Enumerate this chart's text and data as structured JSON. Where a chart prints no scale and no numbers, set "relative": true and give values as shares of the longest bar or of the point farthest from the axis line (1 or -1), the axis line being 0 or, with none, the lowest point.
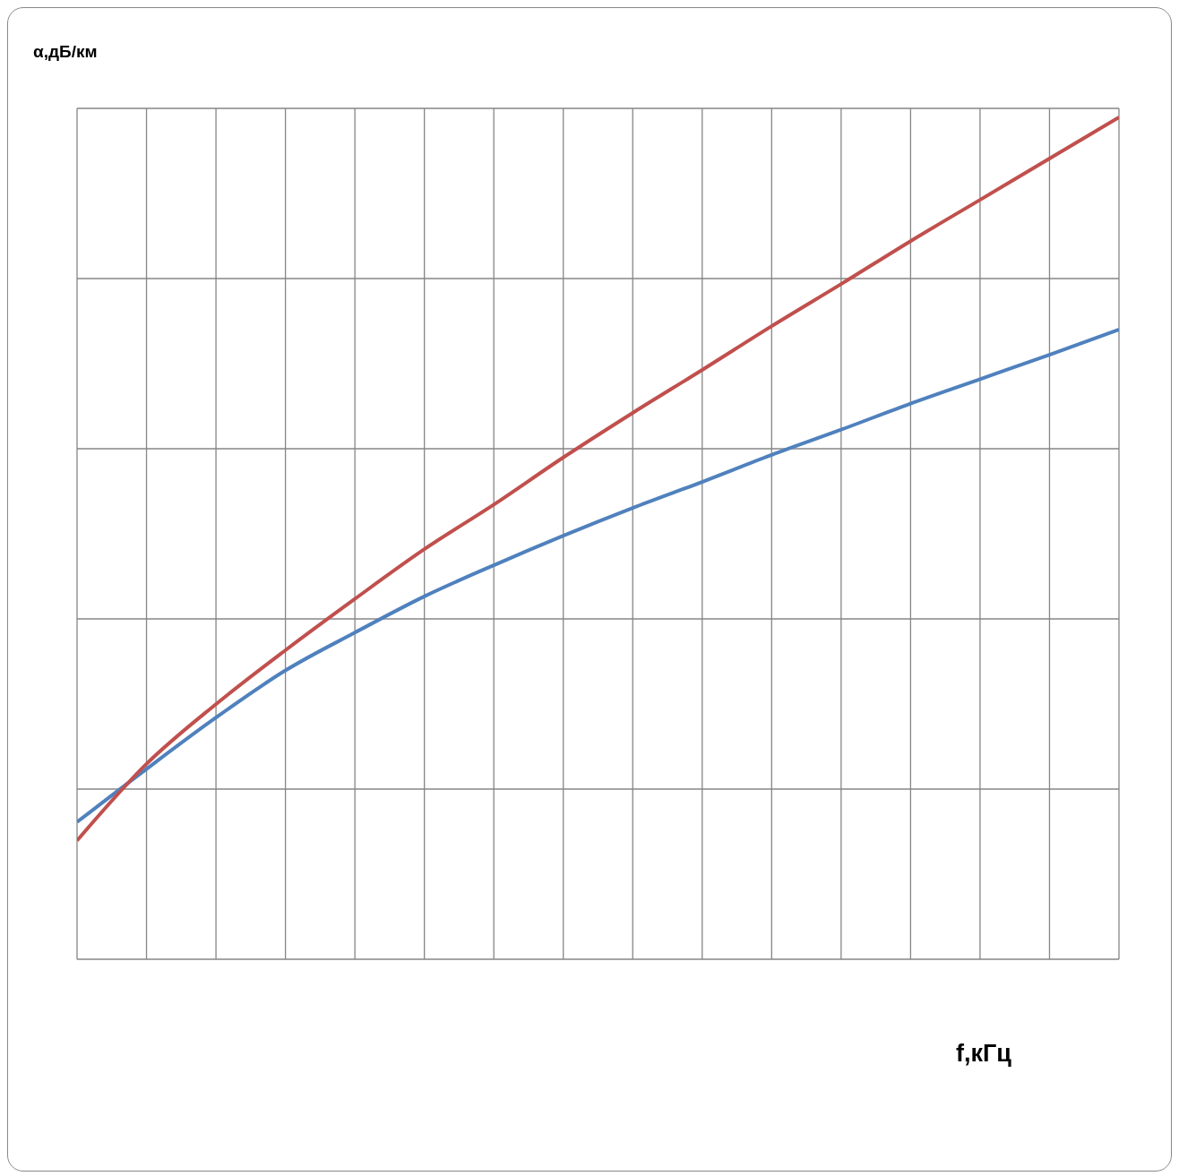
{
  "chart_data": {
    "type": "line",
    "relative": true,
    "xlabel": "f,кГц",
    "ylabel": "α,дБ/км",
    "grid": true,
    "marker": "none",
    "line_style": "solid",
    "categories": [
      null,
      null,
      null,
      null,
      null,
      null,
      null,
      null,
      null,
      null,
      null,
      null,
      null,
      null,
      null,
      null
    ],
    "series": [
      {
        "color": "#4f81bd",
        "values": [
          0.163,
          0.226,
          0.287,
          0.343,
          0.388,
          0.431,
          0.468,
          0.503,
          0.536,
          0.567,
          0.599,
          0.629,
          0.66,
          0.689,
          0.718,
          0.748
        ]
      },
      {
        "color": "#c0504d",
        "values": [
          0.141,
          0.232,
          0.303,
          0.367,
          0.428,
          0.487,
          0.54,
          0.596,
          0.649,
          0.7,
          0.752,
          0.802,
          0.853,
          0.902,
          0.951,
          1
        ]
      }
    ]
  }
}
